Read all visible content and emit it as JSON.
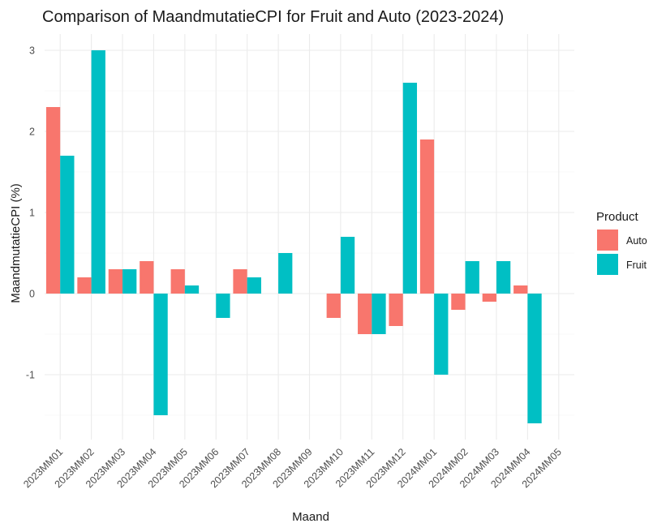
{
  "chart_data": {
    "type": "bar",
    "title": "Comparison of MaandmutatieCPI for Fruit and Auto (2023-2024)",
    "xlabel": "Maand",
    "ylabel": "MaandmutatieCPI (%)",
    "categories": [
      "2023MM01",
      "2023MM02",
      "2023MM03",
      "2023MM04",
      "2023MM05",
      "2023MM06",
      "2023MM07",
      "2023MM08",
      "2023MM09",
      "2023MM10",
      "2023MM11",
      "2023MM12",
      "2024MM01",
      "2024MM02",
      "2024MM03",
      "2024MM04",
      "2024MM05"
    ],
    "series": [
      {
        "name": "Auto",
        "color": "#F8766D",
        "values": [
          2.3,
          0.2,
          0.3,
          0.4,
          0.3,
          null,
          0.3,
          null,
          null,
          -0.3,
          -0.5,
          -0.4,
          1.9,
          -0.2,
          -0.1,
          0.1,
          null
        ]
      },
      {
        "name": "Fruit",
        "color": "#00BFC4",
        "values": [
          1.7,
          3.0,
          0.3,
          -1.5,
          0.1,
          -0.3,
          0.2,
          0.5,
          null,
          0.7,
          -0.5,
          2.6,
          -1.0,
          0.4,
          0.4,
          -1.6,
          null
        ]
      }
    ],
    "ylim": [
      -1.8,
      3.2
    ],
    "yticks": [
      -1,
      0,
      1,
      2,
      3
    ],
    "yticks_labels": [
      "-1",
      "0",
      "1",
      "2",
      "3"
    ],
    "grid": true,
    "legend": {
      "title": "Product",
      "position": "right"
    }
  }
}
